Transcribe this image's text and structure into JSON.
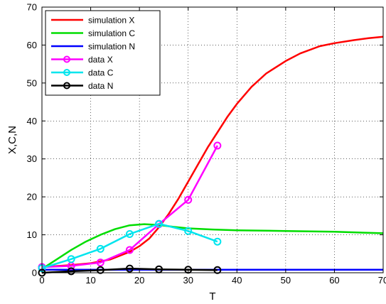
{
  "chart_data": {
    "type": "line",
    "title": "",
    "xlabel": "T",
    "ylabel": "X,C,N",
    "xlim": [
      0,
      70
    ],
    "ylim": [
      0,
      70
    ],
    "xticks": [
      0,
      10,
      20,
      30,
      40,
      50,
      60,
      70
    ],
    "yticks": [
      0,
      10,
      20,
      30,
      40,
      50,
      60,
      70
    ],
    "xtick_labels": [
      "0",
      "10",
      "20",
      "30",
      "40",
      "50",
      "60",
      "70"
    ],
    "ytick_labels": [
      "0",
      "10",
      "20",
      "30",
      "40",
      "50",
      "60",
      "70"
    ],
    "grid": true,
    "legend_position": "top-left",
    "series": [
      {
        "name": "simulation X",
        "kind": "line",
        "color": "#ff0000",
        "x": [
          0,
          6,
          10,
          14,
          18,
          20,
          22,
          24,
          26,
          28,
          30,
          32,
          34,
          36,
          38,
          40,
          43,
          46,
          50,
          53,
          57,
          60,
          64,
          67,
          70
        ],
        "y": [
          1.5,
          2.0,
          2.5,
          3.5,
          5.5,
          7.0,
          9.0,
          12.0,
          15.5,
          19.5,
          24.0,
          28.5,
          33.0,
          37.0,
          41.0,
          44.5,
          49.0,
          52.5,
          55.8,
          57.8,
          59.7,
          60.5,
          61.3,
          61.8,
          62.2
        ]
      },
      {
        "name": "simulation C",
        "kind": "line",
        "color": "#00dd00",
        "x": [
          0,
          3,
          6,
          9,
          12,
          15,
          18,
          21,
          24,
          27,
          30,
          35,
          40,
          50,
          60,
          70
        ],
        "y": [
          1.0,
          3.5,
          6.0,
          8.2,
          10.0,
          11.5,
          12.5,
          12.8,
          12.6,
          12.1,
          11.7,
          11.4,
          11.2,
          11.0,
          10.8,
          10.4
        ]
      },
      {
        "name": "simulation N",
        "kind": "line",
        "color": "#0000ff",
        "x": [
          0,
          20,
          36,
          50,
          70
        ],
        "y": [
          0.8,
          0.8,
          0.8,
          0.8,
          0.8
        ]
      },
      {
        "name": "data X",
        "kind": "line-marker",
        "color": "#ff00ff",
        "x": [
          0,
          6,
          12,
          18,
          24,
          30,
          36
        ],
        "y": [
          1.5,
          1.8,
          2.7,
          6.0,
          12.8,
          19.2,
          33.5
        ]
      },
      {
        "name": "data C",
        "kind": "line-marker",
        "color": "#00e5ee",
        "x": [
          0,
          6,
          12,
          18,
          24,
          30,
          36
        ],
        "y": [
          1.2,
          3.6,
          6.3,
          10.2,
          12.9,
          11.0,
          8.2
        ]
      },
      {
        "name": "data N",
        "kind": "line-marker",
        "color": "#000000",
        "x": [
          0,
          6,
          12,
          18,
          24,
          30,
          36
        ],
        "y": [
          0.0,
          0.4,
          0.7,
          1.1,
          0.9,
          0.8,
          0.7
        ]
      }
    ]
  }
}
